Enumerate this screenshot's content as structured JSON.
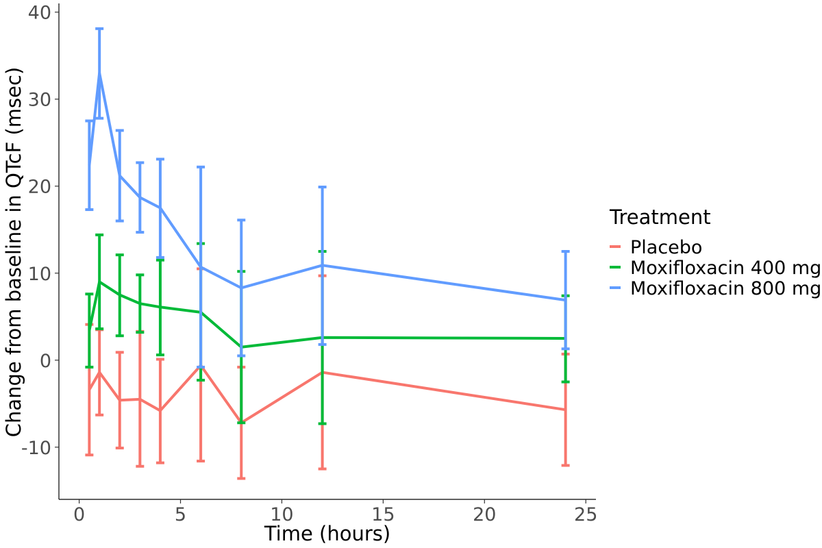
{
  "chart_data": {
    "type": "line",
    "xlabel": "Time (hours)",
    "ylabel": "Change from baseline in QTcF (msec)",
    "xlim": [
      -1,
      25.5
    ],
    "ylim": [
      -16,
      41
    ],
    "xticks": [
      0,
      5,
      10,
      15,
      20,
      25
    ],
    "xtick_labels": [
      "0",
      "5",
      "10",
      "15",
      "20",
      "25"
    ],
    "yticks": [
      -10,
      0,
      10,
      20,
      30,
      40
    ],
    "ytick_labels": [
      "-10",
      "0",
      "10",
      "20",
      "30",
      "40"
    ],
    "grid": false,
    "legend": {
      "title": "Treatment",
      "position": "right"
    },
    "x": [
      0.5,
      1,
      2,
      3,
      4,
      6,
      8,
      12,
      24
    ],
    "series": [
      {
        "name": "Placebo",
        "color": "#F8766D",
        "values": [
          -3.4,
          -1.4,
          -4.6,
          -4.5,
          -5.8,
          -0.6,
          -7.2,
          -1.4,
          -5.7
        ],
        "lower": [
          -10.9,
          -6.3,
          -10.1,
          -12.2,
          -11.8,
          -11.6,
          -13.6,
          -12.5,
          -12.1
        ],
        "upper": [
          4.1,
          3.5,
          0.9,
          3.3,
          0.1,
          10.5,
          -0.8,
          9.7,
          0.7
        ]
      },
      {
        "name": "Moxifloxacin 400 mg",
        "color": "#00BA38",
        "values": [
          3.4,
          9.0,
          7.5,
          6.5,
          6.1,
          5.5,
          1.5,
          2.6,
          2.5
        ],
        "lower": [
          -0.8,
          3.6,
          2.8,
          3.2,
          0.6,
          -2.3,
          -7.2,
          -7.3,
          -2.5
        ],
        "upper": [
          7.6,
          14.4,
          12.1,
          9.8,
          11.5,
          13.4,
          10.2,
          12.5,
          7.4
        ]
      },
      {
        "name": "Moxifloxacin 800 mg",
        "color": "#619CFF",
        "values": [
          22.4,
          33.0,
          21.2,
          18.7,
          17.5,
          10.7,
          8.3,
          10.9,
          6.9
        ],
        "lower": [
          17.3,
          27.8,
          16.0,
          14.7,
          11.8,
          -0.8,
          0.5,
          1.8,
          1.3
        ],
        "upper": [
          27.5,
          38.1,
          26.4,
          22.7,
          23.1,
          22.2,
          16.1,
          19.9,
          12.5
        ]
      }
    ]
  }
}
